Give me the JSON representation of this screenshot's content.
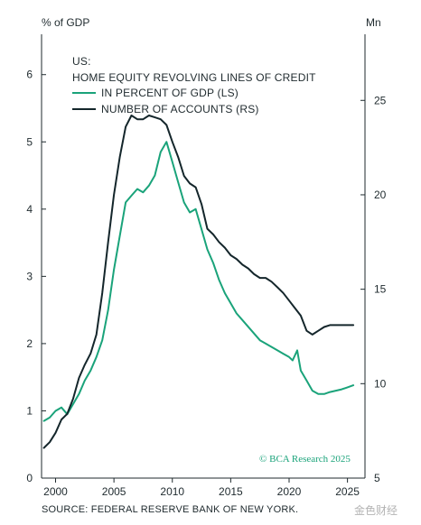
{
  "chart_data": {
    "type": "line",
    "left_axis_title": "% of GDP",
    "right_axis_title": "Mn",
    "title_line1": "US:",
    "title_line2": "HOME EQUITY REVOLVING LINES OF CREDIT",
    "x_ticks": [
      "2000",
      "2005",
      "2010",
      "2015",
      "2020",
      "2025"
    ],
    "x_range": [
      1998.8,
      2026.5
    ],
    "left_ticks": [
      "0",
      "1",
      "2",
      "3",
      "4",
      "5",
      "6"
    ],
    "left_range": [
      0,
      6.6
    ],
    "right_ticks": [
      "5",
      "10",
      "15",
      "20",
      "25"
    ],
    "right_range": [
      5,
      28.5
    ],
    "series": [
      {
        "name": "IN PERCENT OF GDP (LS)",
        "axis": "left",
        "color": "#1aa37a",
        "x": [
          1999.0,
          1999.5,
          2000.0,
          2000.5,
          2001.0,
          2001.5,
          2002.0,
          2002.5,
          2003.0,
          2003.5,
          2004.0,
          2004.5,
          2005.0,
          2005.5,
          2006.0,
          2006.5,
          2007.0,
          2007.5,
          2008.0,
          2008.5,
          2009.0,
          2009.5,
          2010.0,
          2010.5,
          2011.0,
          2011.5,
          2012.0,
          2012.5,
          2013.0,
          2013.5,
          2014.0,
          2014.5,
          2015.0,
          2015.5,
          2016.0,
          2016.5,
          2017.0,
          2017.5,
          2018.0,
          2018.5,
          2019.0,
          2019.5,
          2020.0,
          2020.3,
          2020.7,
          2021.0,
          2021.5,
          2022.0,
          2022.5,
          2023.0,
          2023.5,
          2024.0,
          2024.5,
          2025.0,
          2025.5
        ],
        "values": [
          0.85,
          0.9,
          1.0,
          1.05,
          0.95,
          1.1,
          1.25,
          1.45,
          1.6,
          1.8,
          2.05,
          2.5,
          3.1,
          3.6,
          4.1,
          4.2,
          4.3,
          4.25,
          4.35,
          4.5,
          4.85,
          5.0,
          4.7,
          4.4,
          4.1,
          3.95,
          4.0,
          3.7,
          3.4,
          3.2,
          2.95,
          2.75,
          2.6,
          2.45,
          2.35,
          2.25,
          2.15,
          2.05,
          2.0,
          1.95,
          1.9,
          1.85,
          1.8,
          1.75,
          1.9,
          1.6,
          1.45,
          1.3,
          1.25,
          1.25,
          1.28,
          1.3,
          1.32,
          1.35,
          1.38
        ]
      },
      {
        "name": "NUMBER OF ACCOUNTS (RS)",
        "axis": "right",
        "color": "#14262b",
        "x": [
          1999.0,
          1999.5,
          2000.0,
          2000.5,
          2001.0,
          2001.5,
          2002.0,
          2002.5,
          2003.0,
          2003.5,
          2004.0,
          2004.5,
          2005.0,
          2005.5,
          2006.0,
          2006.5,
          2007.0,
          2007.5,
          2008.0,
          2008.5,
          2009.0,
          2009.5,
          2010.0,
          2010.5,
          2011.0,
          2011.5,
          2012.0,
          2012.5,
          2013.0,
          2013.5,
          2014.0,
          2014.5,
          2015.0,
          2015.5,
          2016.0,
          2016.5,
          2017.0,
          2017.5,
          2018.0,
          2018.5,
          2019.0,
          2019.5,
          2020.0,
          2020.5,
          2021.0,
          2021.5,
          2022.0,
          2022.5,
          2023.0,
          2023.5,
          2024.0,
          2024.5,
          2025.0,
          2025.5
        ],
        "values": [
          6.6,
          6.9,
          7.4,
          8.1,
          8.4,
          9.2,
          10.3,
          11.0,
          11.6,
          12.6,
          14.8,
          17.5,
          20.0,
          22.0,
          23.6,
          24.2,
          24.0,
          24.0,
          24.2,
          24.1,
          24.0,
          23.7,
          22.8,
          22.0,
          21.0,
          20.6,
          20.4,
          19.5,
          18.2,
          17.9,
          17.5,
          17.2,
          16.8,
          16.6,
          16.3,
          16.1,
          15.8,
          15.6,
          15.6,
          15.4,
          15.1,
          14.8,
          14.4,
          14.0,
          13.6,
          12.8,
          12.6,
          12.8,
          13.0,
          13.1,
          13.1,
          13.1,
          13.1,
          13.1
        ]
      }
    ],
    "grid": false,
    "legend_position": "top-left"
  },
  "credit": "© BCA Research 2025",
  "source": "SOURCE: FEDERAL RESERVE BANK OF NEW YORK.",
  "watermark": "金色财经"
}
